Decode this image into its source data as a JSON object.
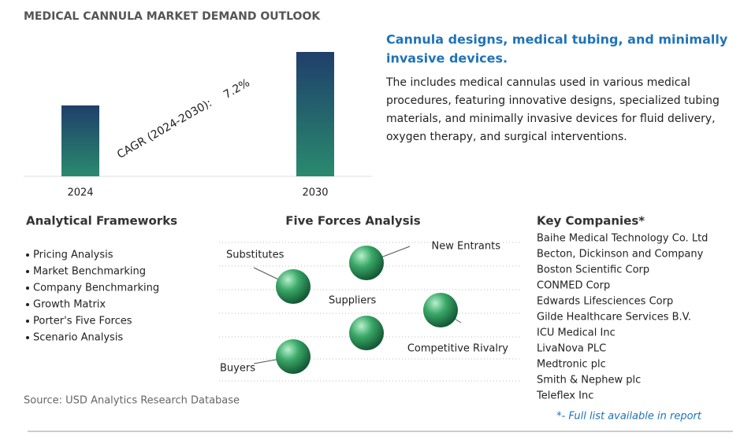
{
  "header": {
    "title": "MEDICAL CANNULA MARKET DEMAND OUTLOOK"
  },
  "chart_data": {
    "type": "bar",
    "categories": [
      "2024",
      "2030"
    ],
    "values": [
      57,
      100
    ],
    "ylim": [
      0,
      100
    ],
    "annotations": [
      "CAGR (2024-2030):",
      "7.2%"
    ],
    "colors": [
      "#2a8a6e",
      "#1f3f6b"
    ]
  },
  "summary": {
    "heading": [
      "Cannula designs, medical tubing, and minimally",
      "invasive devices."
    ],
    "body": [
      "The includes medical cannulas used in various medical",
      "procedures, featuring innovative designs, specialized tubing",
      "materials, and minimally invasive devices for fluid delivery,",
      "oxygen therapy, and surgical interventions."
    ]
  },
  "frameworks": {
    "title": "Analytical Frameworks",
    "items": [
      "Pricing Analysis",
      "Market Benchmarking",
      "Company Benchmarking",
      "Growth Matrix",
      "Porter's Five Forces",
      "Scenario Analysis"
    ]
  },
  "five_forces": {
    "title": "Five Forces Analysis",
    "forces": [
      "Substitutes",
      "New Entrants",
      "Suppliers",
      "Competitive Rivalry",
      "Buyers"
    ]
  },
  "companies": {
    "title": "Key Companies*",
    "items": [
      "Baihe Medical Technology Co. Ltd",
      "Becton, Dickinson and Company",
      "Boston Scientific Corp",
      "CONMED Corp",
      "Edwards Lifesciences Corp",
      "Gilde Healthcare Services B.V.",
      "ICU Medical Inc",
      "LivaNova PLC",
      "Medtronic plc",
      "Smith & Nephew plc",
      "Teleflex Inc"
    ],
    "note": "*- Full list available in report"
  },
  "source": "Source: USD Analytics Research Database"
}
